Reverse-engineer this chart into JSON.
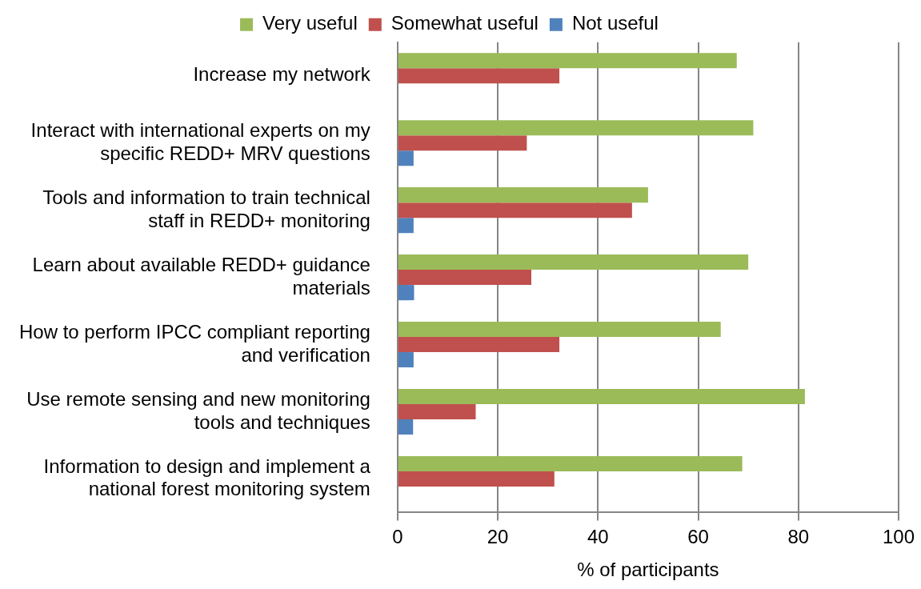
{
  "chart_data": {
    "type": "bar",
    "orientation": "horizontal",
    "xlabel": "% of participants",
    "categories": [
      "Increase my network",
      "Interact with international experts on my specific REDD+ MRV questions",
      "Tools and information to train technical staff in REDD+ monitoring",
      "Learn about available REDD+ guidance materials",
      "How to perform IPCC compliant reporting and verification",
      "Use remote sensing and new monitoring tools and techniques",
      "Information to design and implement a national forest monitoring system"
    ],
    "series": [
      {
        "name": "Very useful",
        "color": "#9bbb59",
        "values": [
          67.7,
          71.0,
          50.0,
          70.0,
          64.5,
          81.3,
          68.8
        ]
      },
      {
        "name": "Somewhat useful",
        "color": "#c0504d",
        "values": [
          32.3,
          25.8,
          46.8,
          26.7,
          32.3,
          15.6,
          31.3
        ]
      },
      {
        "name": "Not useful",
        "color": "#4f81bd",
        "values": [
          null,
          3.2,
          3.2,
          3.3,
          3.2,
          3.1,
          null
        ]
      }
    ],
    "xlim": [
      0,
      100
    ],
    "xticks": [
      0,
      20,
      40,
      60,
      80,
      100
    ],
    "grid": "x",
    "legend": "top"
  }
}
